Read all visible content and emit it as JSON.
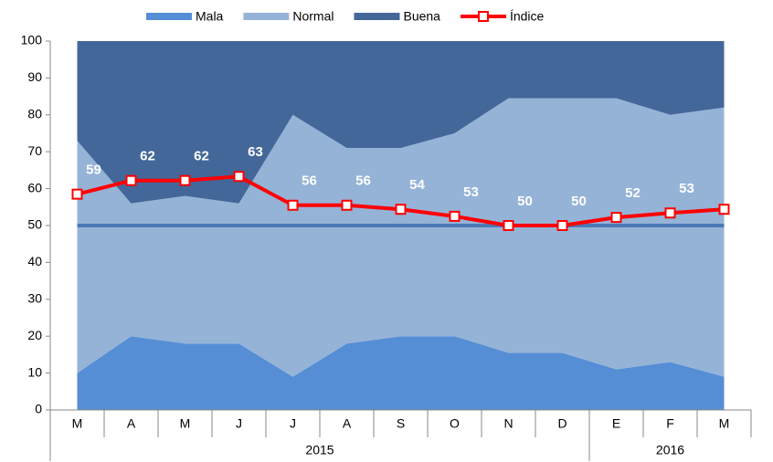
{
  "chart_data": {
    "type": "area",
    "categories": [
      "M",
      "A",
      "M",
      "J",
      "J",
      "A",
      "S",
      "O",
      "N",
      "D",
      "E",
      "F",
      "M"
    ],
    "x_groups": [
      {
        "label": "2015",
        "span": 10
      },
      {
        "label": "2016",
        "span": 3
      }
    ],
    "series": [
      {
        "name": "Mala",
        "color": "#558ed5",
        "values": [
          10,
          20,
          18,
          18,
          9,
          18,
          20,
          20,
          15.5,
          15.5,
          11,
          13,
          9
        ]
      },
      {
        "name": "Normal",
        "color": "#95b3d7",
        "values": [
          63,
          36,
          40,
          38,
          71,
          53,
          51,
          55,
          69,
          69,
          73.5,
          67,
          73
        ]
      },
      {
        "name": "Buena",
        "color": "#44679a",
        "values": [
          27,
          44,
          42,
          44,
          20,
          29,
          29,
          25,
          15.5,
          15.5,
          15.5,
          20,
          18
        ]
      },
      {
        "name": "Índice",
        "type": "line",
        "color": "#ff0000",
        "values": [
          58.5,
          62.2,
          62.2,
          63.3,
          55.5,
          55.5,
          54.4,
          52.5,
          50,
          50,
          52.2,
          53.4,
          54.4
        ],
        "value_labels": [
          "59",
          "62",
          "62",
          "63",
          "56",
          "56",
          "54",
          "53",
          "50",
          "50",
          "52",
          "53",
          "54"
        ]
      }
    ],
    "reference_line": {
      "value": 50,
      "color": "#4a7ab5"
    },
    "ylim": [
      0,
      100
    ],
    "yticks": [
      0,
      10,
      20,
      30,
      40,
      50,
      60,
      70,
      80,
      90,
      100
    ]
  }
}
